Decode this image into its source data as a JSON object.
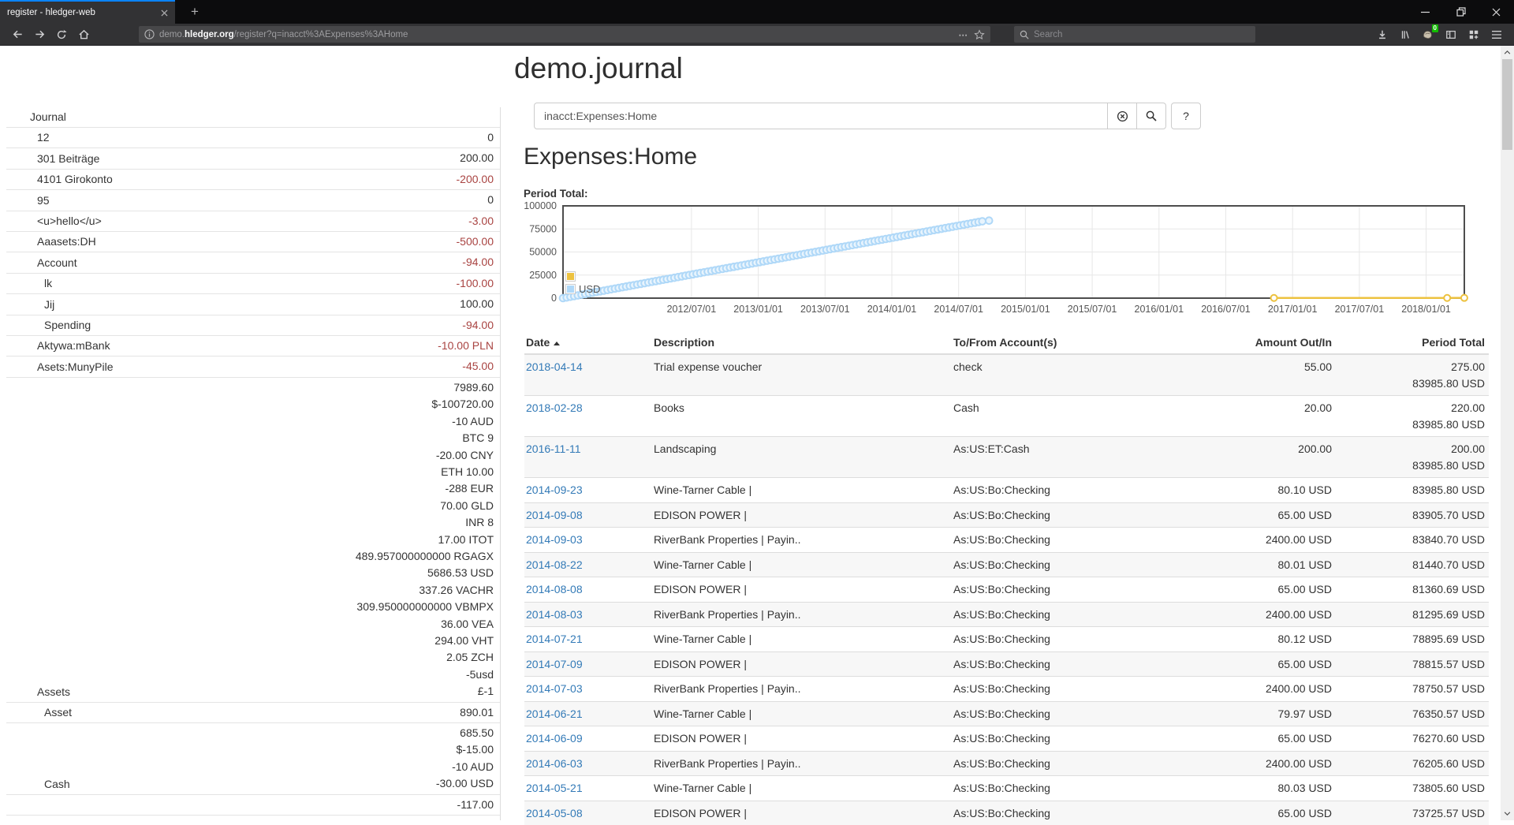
{
  "browser": {
    "tab_title": "register - hledger-web",
    "url_subdomain": "demo.",
    "url_host": "hledger.org",
    "url_path": "/register?q=inacct%3AExpenses%3AHome",
    "search_placeholder": "Search",
    "ext_badge": "0"
  },
  "page": {
    "title": "demo.journal",
    "query_value": "inacct:Expenses:Home",
    "help_button": "?",
    "account_title": "Expenses:Home",
    "chart_label": "Period Total:"
  },
  "sidebar": {
    "journal_label": "Journal",
    "rows": [
      {
        "name": "12",
        "depth": 1,
        "values": [
          "0"
        ],
        "neg": false
      },
      {
        "name": "301 Beiträge",
        "depth": 1,
        "values": [
          "200.00"
        ],
        "neg": false
      },
      {
        "name": "4101 Girokonto",
        "depth": 1,
        "values": [
          "-200.00"
        ],
        "neg": true
      },
      {
        "name": "95",
        "depth": 1,
        "values": [
          "0"
        ],
        "neg": false
      },
      {
        "name": "<u>hello</u>",
        "depth": 1,
        "values": [
          "-3.00"
        ],
        "neg": true
      },
      {
        "name": "Aaasets:DH",
        "depth": 1,
        "values": [
          "-500.00"
        ],
        "neg": true
      },
      {
        "name": "Account",
        "depth": 1,
        "values": [
          "-94.00"
        ],
        "neg": true
      },
      {
        "name": "lk",
        "depth": 2,
        "values": [
          "-100.00"
        ],
        "neg": true
      },
      {
        "name": "Jij",
        "depth": 2,
        "values": [
          "100.00"
        ],
        "neg": false
      },
      {
        "name": "Spending",
        "depth": 2,
        "values": [
          "-94.00"
        ],
        "neg": true
      },
      {
        "name": "Aktywa:mBank",
        "depth": 1,
        "values": [
          "-10.00 PLN"
        ],
        "neg": true
      },
      {
        "name": "Asets:MunyPile",
        "depth": 1,
        "values": [
          "-45.00"
        ],
        "neg": true
      },
      {
        "name": "Assets",
        "depth": 1,
        "values": [
          "7989.60",
          "$-100720.00",
          "-10 AUD",
          "BTC 9",
          "-20.00 CNY",
          "ETH 10.00",
          "-288 EUR",
          "70.00 GLD",
          "INR 8",
          "17.00 ITOT",
          "489.957000000000 RGAGX",
          "5686.53 USD",
          "337.26 VACHR",
          "309.950000000000 VBMPX",
          "36.00 VEA",
          "294.00 VHT",
          "2.05 ZCH",
          "-5usd",
          "£-1"
        ],
        "neg": false
      },
      {
        "name": "Asset",
        "depth": 2,
        "values": [
          "890.01"
        ],
        "neg": false
      },
      {
        "name": "Cash",
        "depth": 2,
        "values": [
          "685.50",
          "$-15.00",
          "-10 AUD",
          "-30.00 USD"
        ],
        "neg": false
      },
      {
        "name": "",
        "depth": 2,
        "values": [
          "-117.00"
        ],
        "neg": false
      }
    ]
  },
  "chart_data": {
    "type": "line",
    "title": "Period Total:",
    "xlabel": "",
    "ylabel": "",
    "x_axis": {
      "start": "2011-07-15",
      "end": "2018-04-14",
      "ticks": [
        "2012/07/01",
        "2013/01/01",
        "2013/07/01",
        "2014/01/01",
        "2014/07/01",
        "2015/01/01",
        "2015/07/01",
        "2016/01/01",
        "2016/07/01",
        "2017/01/01",
        "2017/07/01",
        "2018/01/01"
      ]
    },
    "y_axis": {
      "min": 0,
      "max": 100000,
      "ticks": [
        0,
        25000,
        50000,
        75000,
        100000
      ]
    },
    "grid": true,
    "legend_position": "bottom-left",
    "series": [
      {
        "name": "",
        "color": "#edc240",
        "points": [
          [
            "2016-11-11",
            200
          ],
          [
            "2018-02-28",
            220
          ],
          [
            "2018-04-14",
            275
          ]
        ]
      },
      {
        "name": "USD",
        "color": "#afd8f8",
        "months": [
          "2011-07",
          "2011-08",
          "2011-09",
          "2011-10",
          "2011-11",
          "2011-12",
          "2012-01",
          "2012-02",
          "2012-03",
          "2012-04",
          "2012-05",
          "2012-06",
          "2012-07",
          "2012-08",
          "2012-09",
          "2012-10",
          "2012-11",
          "2012-12",
          "2013-01",
          "2013-02",
          "2013-03",
          "2013-04",
          "2013-05",
          "2013-06",
          "2013-07",
          "2013-08",
          "2013-09",
          "2013-10",
          "2013-11",
          "2013-12",
          "2014-01",
          "2014-02",
          "2014-03",
          "2014-04",
          "2014-05",
          "2014-06",
          "2014-07",
          "2014-08",
          "2014-09"
        ],
        "values": [
          0,
          2210,
          4420,
          6630,
          8841,
          11051,
          13261,
          15471,
          17681,
          19891,
          22102,
          24312,
          26522,
          28732,
          30942,
          33152,
          35363,
          37573,
          39783,
          41993,
          44203,
          46413,
          48624,
          50834,
          53044,
          55254,
          57464,
          59674,
          61885,
          64095,
          66305,
          68515,
          70725,
          72935,
          75146,
          77356,
          79566,
          81776,
          83985.8
        ]
      }
    ]
  },
  "register": {
    "columns": [
      "Date",
      "Description",
      "To/From Account(s)",
      "Amount Out/In",
      "Period Total"
    ],
    "rows": [
      {
        "date": "2018-04-14",
        "description": "Trial expense voucher",
        "account": "check",
        "amount": "55.00",
        "period": [
          "275.00",
          "83985.80 USD"
        ]
      },
      {
        "date": "2018-02-28",
        "description": "Books",
        "account": "Cash",
        "amount": "20.00",
        "period": [
          "220.00",
          "83985.80 USD"
        ]
      },
      {
        "date": "2016-11-11",
        "description": "Landscaping",
        "account": "As:US:ET:Cash",
        "amount": "200.00",
        "period": [
          "200.00",
          "83985.80 USD"
        ]
      },
      {
        "date": "2014-09-23",
        "description": "Wine-Tarner Cable |",
        "account": "As:US:Bo:Checking",
        "amount": "80.10 USD",
        "period": [
          "83985.80 USD"
        ]
      },
      {
        "date": "2014-09-08",
        "description": "EDISON POWER |",
        "account": "As:US:Bo:Checking",
        "amount": "65.00 USD",
        "period": [
          "83905.70 USD"
        ]
      },
      {
        "date": "2014-09-03",
        "description": "RiverBank Properties | Payin..",
        "account": "As:US:Bo:Checking",
        "amount": "2400.00 USD",
        "period": [
          "83840.70 USD"
        ]
      },
      {
        "date": "2014-08-22",
        "description": "Wine-Tarner Cable |",
        "account": "As:US:Bo:Checking",
        "amount": "80.01 USD",
        "period": [
          "81440.70 USD"
        ]
      },
      {
        "date": "2014-08-08",
        "description": "EDISON POWER |",
        "account": "As:US:Bo:Checking",
        "amount": "65.00 USD",
        "period": [
          "81360.69 USD"
        ]
      },
      {
        "date": "2014-08-03",
        "description": "RiverBank Properties | Payin..",
        "account": "As:US:Bo:Checking",
        "amount": "2400.00 USD",
        "period": [
          "81295.69 USD"
        ]
      },
      {
        "date": "2014-07-21",
        "description": "Wine-Tarner Cable |",
        "account": "As:US:Bo:Checking",
        "amount": "80.12 USD",
        "period": [
          "78895.69 USD"
        ]
      },
      {
        "date": "2014-07-09",
        "description": "EDISON POWER |",
        "account": "As:US:Bo:Checking",
        "amount": "65.00 USD",
        "period": [
          "78815.57 USD"
        ]
      },
      {
        "date": "2014-07-03",
        "description": "RiverBank Properties | Payin..",
        "account": "As:US:Bo:Checking",
        "amount": "2400.00 USD",
        "period": [
          "78750.57 USD"
        ]
      },
      {
        "date": "2014-06-21",
        "description": "Wine-Tarner Cable |",
        "account": "As:US:Bo:Checking",
        "amount": "79.97 USD",
        "period": [
          "76350.57 USD"
        ]
      },
      {
        "date": "2014-06-09",
        "description": "EDISON POWER |",
        "account": "As:US:Bo:Checking",
        "amount": "65.00 USD",
        "period": [
          "76270.60 USD"
        ]
      },
      {
        "date": "2014-06-03",
        "description": "RiverBank Properties | Payin..",
        "account": "As:US:Bo:Checking",
        "amount": "2400.00 USD",
        "period": [
          "76205.60 USD"
        ]
      },
      {
        "date": "2014-05-21",
        "description": "Wine-Tarner Cable |",
        "account": "As:US:Bo:Checking",
        "amount": "80.03 USD",
        "period": [
          "73805.60 USD"
        ]
      },
      {
        "date": "2014-05-08",
        "description": "EDISON POWER |",
        "account": "As:US:Bo:Checking",
        "amount": "65.00 USD",
        "period": [
          "73725.57 USD"
        ]
      }
    ]
  }
}
